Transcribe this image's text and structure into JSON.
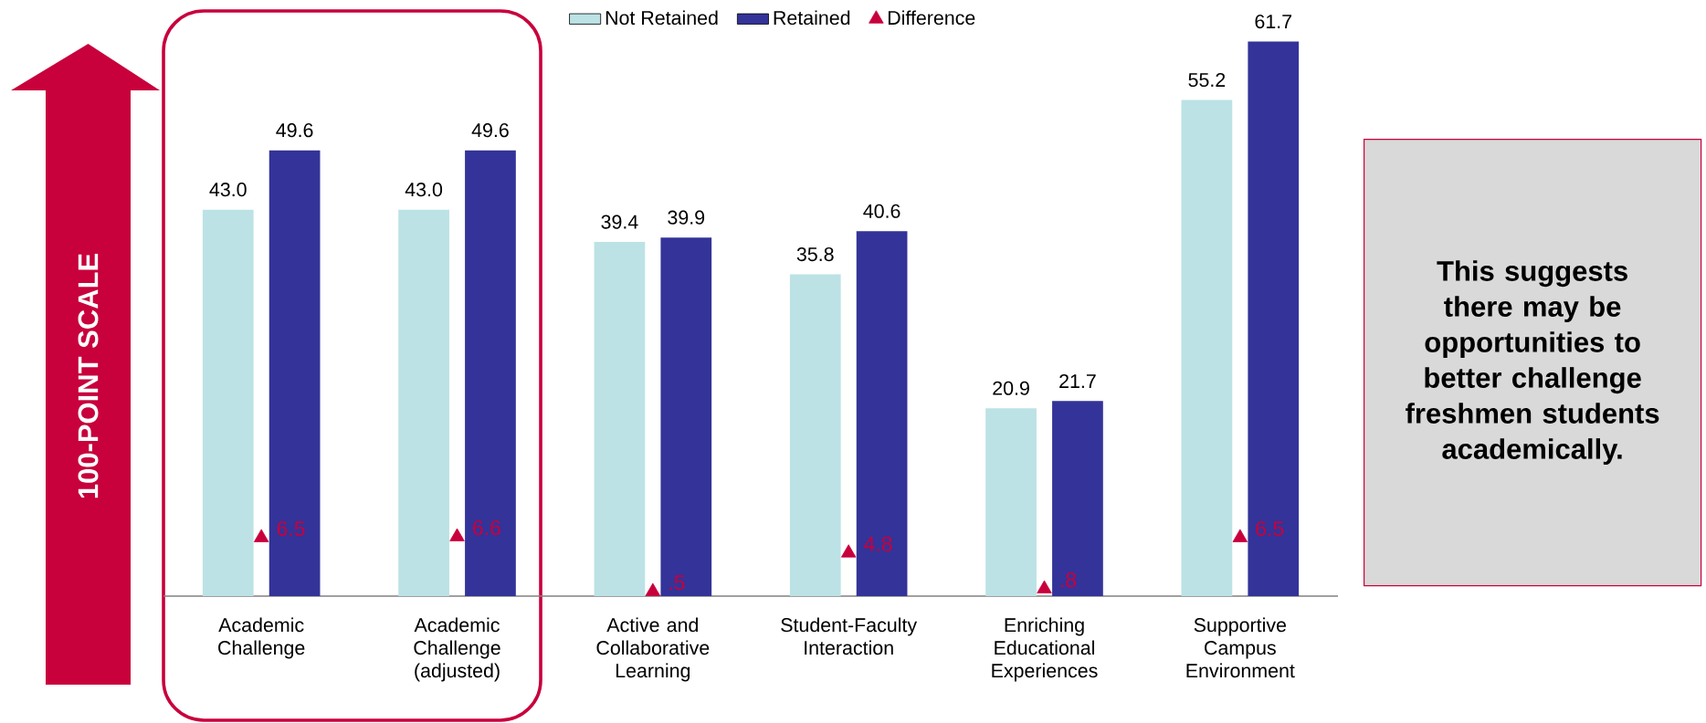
{
  "chart_data": {
    "type": "bar",
    "categories": [
      "Academic Challenge",
      "Academic Challenge (adjusted)",
      "Active and Collaborative Learning",
      "Student-Faculty Interaction",
      "Enriching Educational Experiences",
      "Supportive Campus Environment"
    ],
    "series": [
      {
        "name": "Not Retained",
        "color": "#bce2e5",
        "values": [
          43.0,
          43.0,
          39.4,
          35.8,
          20.9,
          55.2
        ],
        "value_labels": [
          "43.0",
          "43.0",
          "39.4",
          "35.8",
          "20.9",
          "55.2"
        ]
      },
      {
        "name": "Retained",
        "color": "#333399",
        "values": [
          49.6,
          49.6,
          39.9,
          40.6,
          21.7,
          61.7
        ],
        "value_labels": [
          "49.6",
          "49.6",
          "39.9",
          "40.6",
          "21.7",
          "61.7"
        ]
      },
      {
        "name": "Difference",
        "type": "scatter",
        "marker": "triangle",
        "color": "#c8003c",
        "values": [
          6.5,
          6.6,
          0.5,
          4.8,
          0.8,
          6.5
        ],
        "value_labels": [
          "6.5",
          "6.6",
          ".5",
          "4.8",
          ".8",
          "6.5"
        ]
      }
    ],
    "tick_labels": "x",
    "legend": "top",
    "annotations": [
      "100-POINT SCALE",
      "This suggests there may be opportunities to better challenge freshmen students academically."
    ]
  }
}
